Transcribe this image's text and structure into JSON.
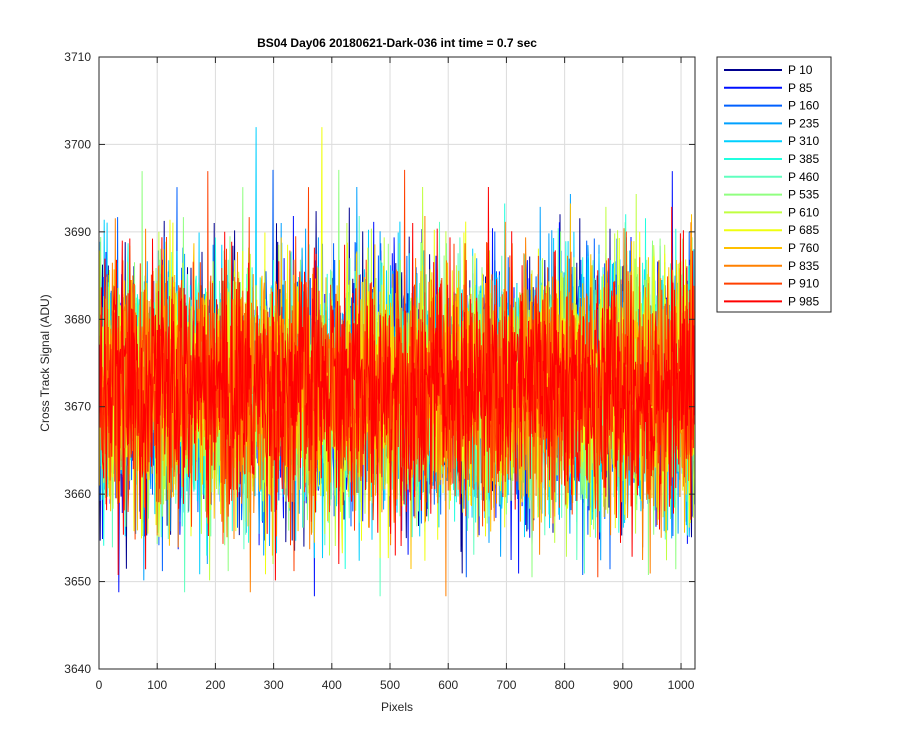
{
  "chart_data": {
    "type": "line",
    "title": "BS04 Day06 20180621-Dark-036 int time = 0.7 sec",
    "xlabel": "Pixels",
    "ylabel": "Cross Track Signal (ADU)",
    "xlim": [
      0,
      1024
    ],
    "ylim": [
      3640,
      3710
    ],
    "xticks": [
      0,
      100,
      200,
      300,
      400,
      500,
      600,
      700,
      800,
      900,
      1000
    ],
    "yticks": [
      3640,
      3650,
      3660,
      3670,
      3680,
      3690,
      3700,
      3710
    ],
    "grid": true,
    "legend_position": "outside-right",
    "series_mean": 3672,
    "series_std": 7,
    "series": [
      {
        "name": "P 10",
        "color": "#00008f"
      },
      {
        "name": "P 85",
        "color": "#0010ff"
      },
      {
        "name": "P 160",
        "color": "#0060ff"
      },
      {
        "name": "P 235",
        "color": "#00a0ff"
      },
      {
        "name": "P 310",
        "color": "#00d0ff"
      },
      {
        "name": "P 385",
        "color": "#20ffdf"
      },
      {
        "name": "P 460",
        "color": "#60ffbf"
      },
      {
        "name": "P 535",
        "color": "#90ff80"
      },
      {
        "name": "P 610",
        "color": "#c0ff40"
      },
      {
        "name": "P 685",
        "color": "#f0ff10"
      },
      {
        "name": "P 760",
        "color": "#ffc000"
      },
      {
        "name": "P 835",
        "color": "#ff8000"
      },
      {
        "name": "P 910",
        "color": "#ff4000"
      },
      {
        "name": "P 985",
        "color": "#ff0000"
      }
    ]
  }
}
